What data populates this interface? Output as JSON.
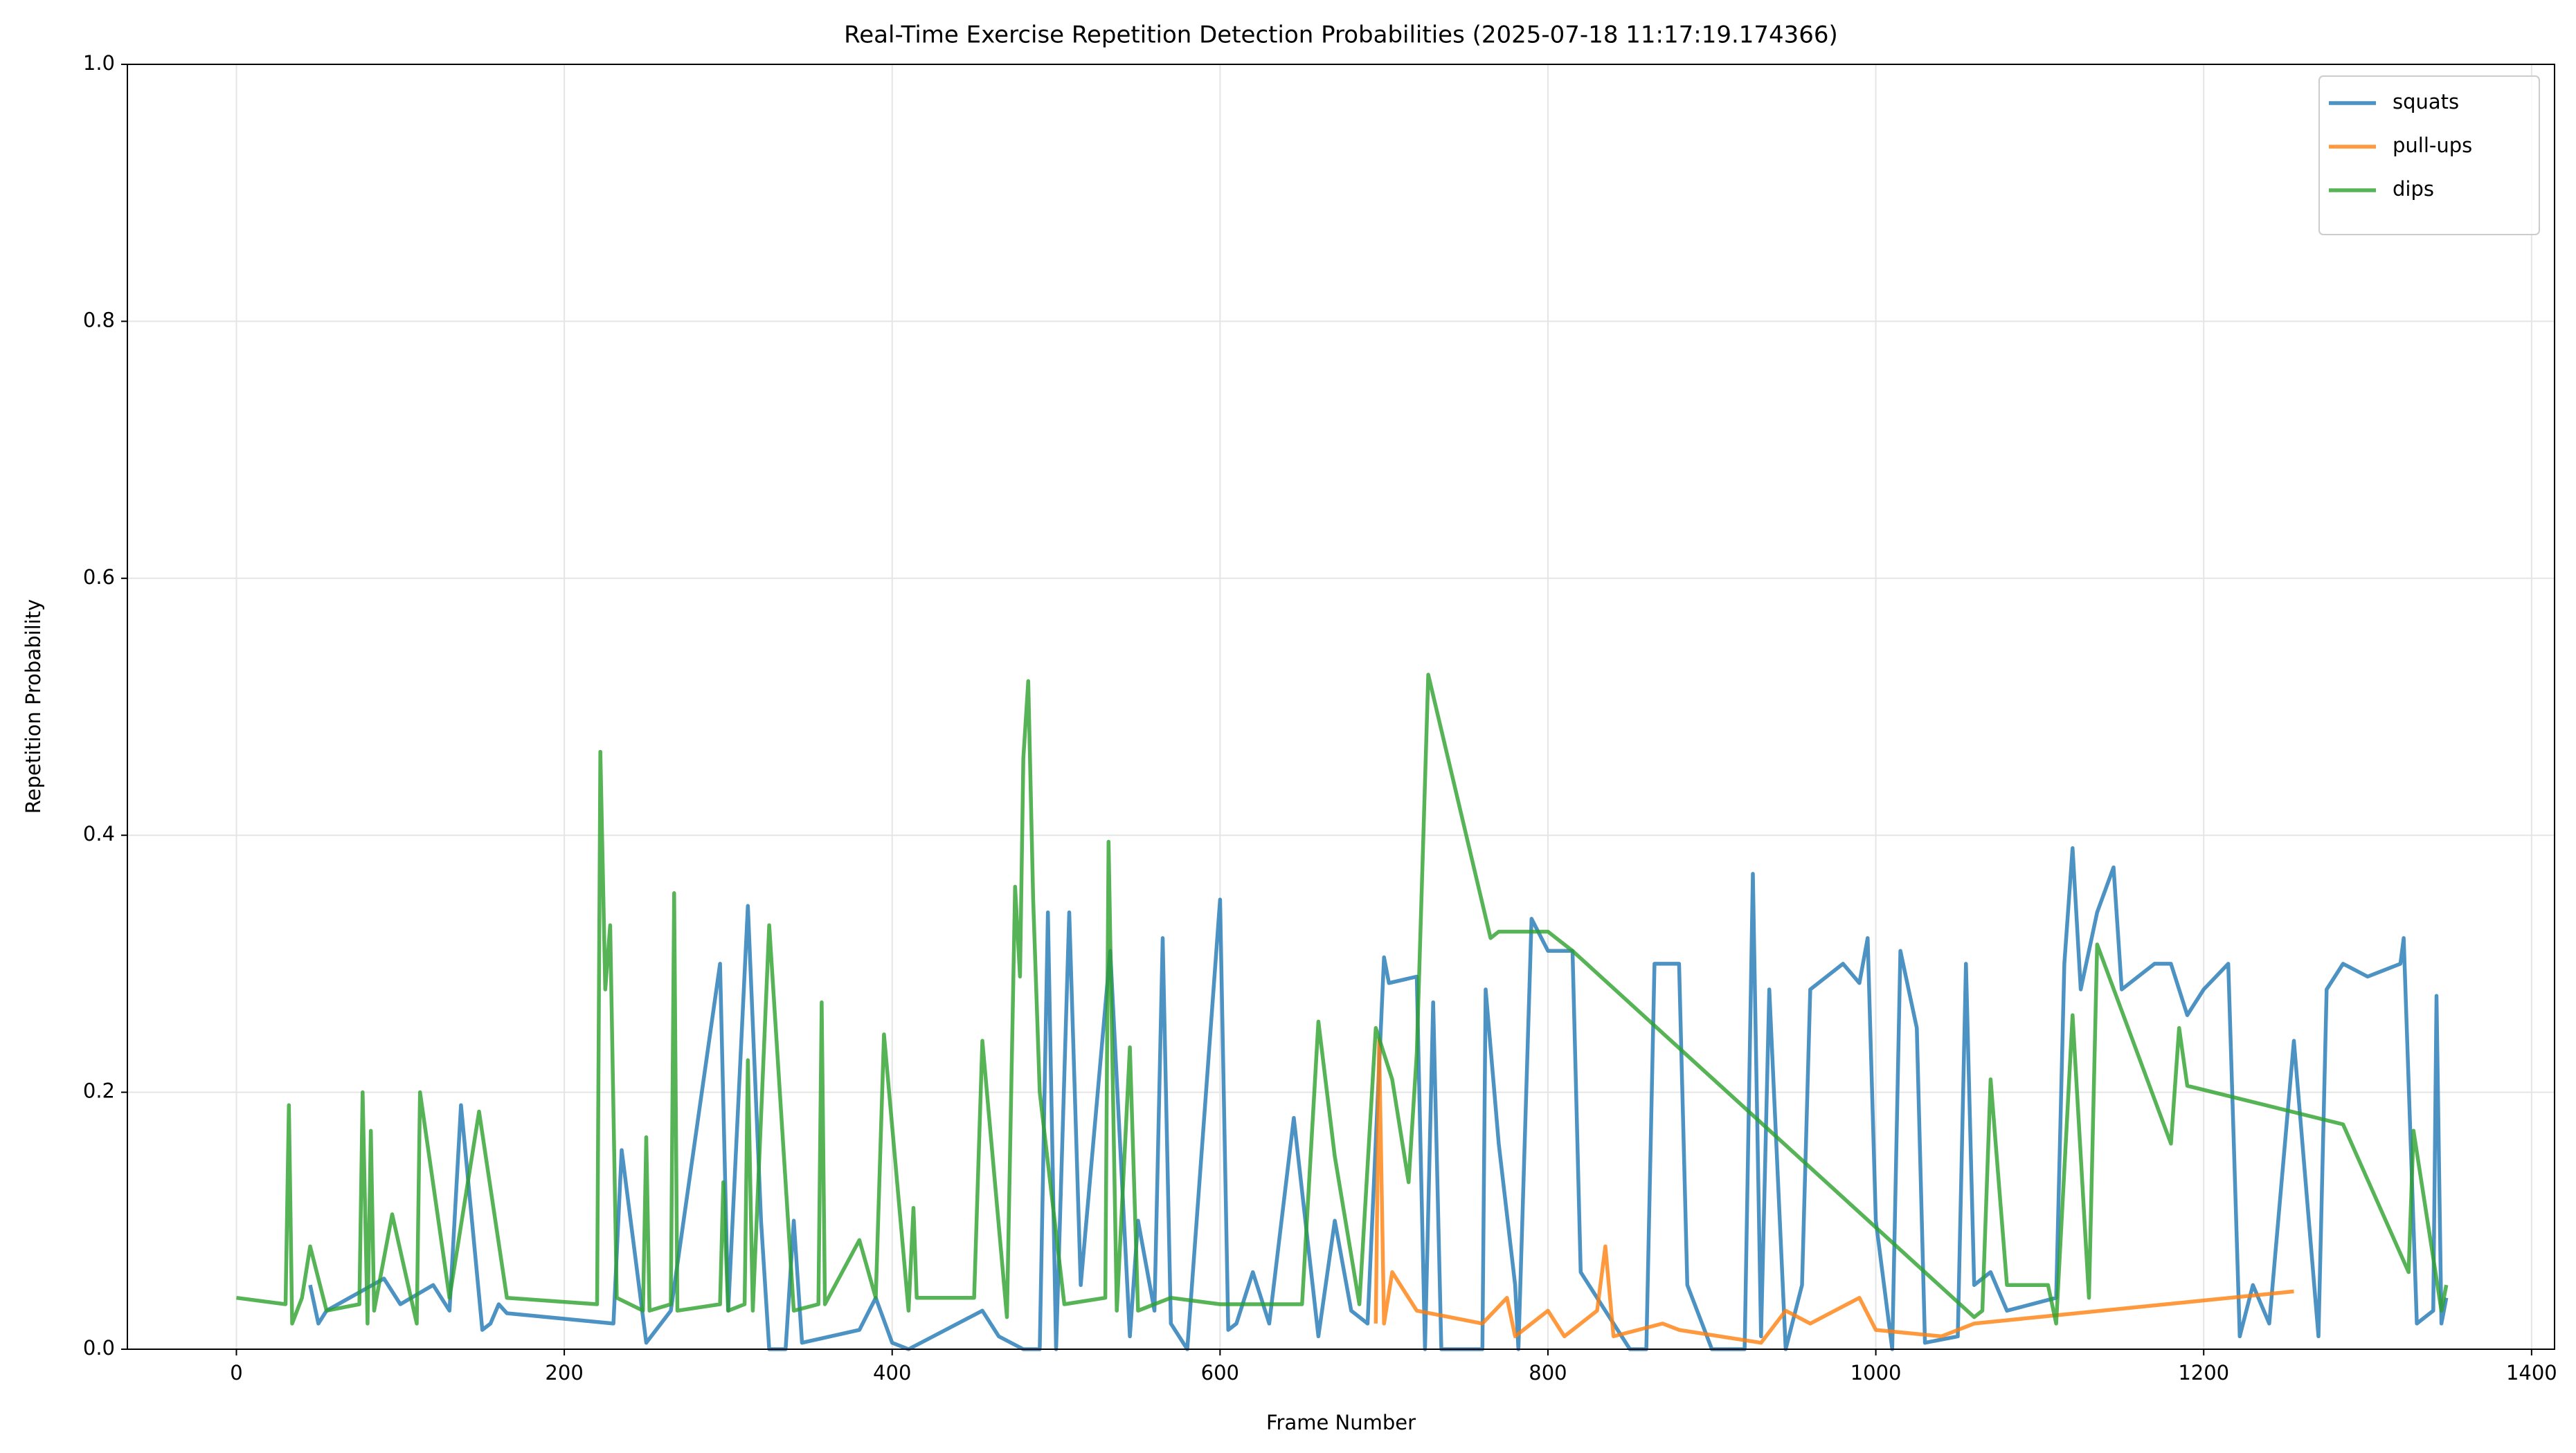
{
  "chart_data": {
    "type": "line",
    "title": "Real-Time Exercise Repetition Detection Probabilities (2025-07-18 11:17:19.174366)",
    "x_label": "Frame Number",
    "y_label": "Repetition Probability",
    "xlim": [
      -66.5,
      1414
    ],
    "ylim": [
      0,
      1
    ],
    "xticks": [
      0,
      200,
      400,
      600,
      800,
      1000,
      1200,
      1400
    ],
    "yticks": [
      {
        "value": 0,
        "label": "0.0"
      },
      0.2,
      0.4,
      0.6,
      0.8,
      {
        "value": 1,
        "label": "1.0"
      }
    ],
    "grid": true,
    "legend": "upper right",
    "series": [
      {
        "name": "squats",
        "color": "#1f77b4",
        "x": [
          45,
          50,
          55,
          90,
          100,
          120,
          130,
          137,
          150,
          155,
          160,
          165,
          230,
          235,
          250,
          265,
          295,
          300,
          312,
          320,
          325,
          335,
          340,
          345,
          380,
          390,
          400,
          410,
          455,
          465,
          480,
          490,
          495,
          500,
          508,
          515,
          533,
          545,
          550,
          560,
          565,
          570,
          580,
          600,
          605,
          610,
          620,
          630,
          645,
          660,
          670,
          680,
          690,
          700,
          703,
          720,
          725,
          730,
          735,
          760,
          762,
          770,
          780,
          782,
          790,
          800,
          815,
          820,
          840,
          850,
          860,
          865,
          880,
          885,
          900,
          920,
          925,
          930,
          935,
          945,
          955,
          960,
          980,
          990,
          995,
          1000,
          1010,
          1015,
          1025,
          1030,
          1050,
          1055,
          1060,
          1070,
          1080,
          1110,
          1115,
          1120,
          1125,
          1135,
          1145,
          1150,
          1170,
          1180,
          1190,
          1200,
          1215,
          1222,
          1230,
          1240,
          1255,
          1270,
          1275,
          1285,
          1300,
          1320,
          1322,
          1330,
          1340,
          1342,
          1345,
          1348
        ],
        "values": [
          0.05,
          0.02,
          0.03,
          0.055,
          0.035,
          0.05,
          0.03,
          0.19,
          0.015,
          0.02,
          0.035,
          0.028,
          0.02,
          0.155,
          0.005,
          0.03,
          0.3,
          0.03,
          0.345,
          0.1,
          0.0,
          0.0,
          0.1,
          0.005,
          0.015,
          0.04,
          0.005,
          0.0,
          0.03,
          0.01,
          0.0,
          0.0,
          0.34,
          0.0,
          0.34,
          0.05,
          0.31,
          0.01,
          0.1,
          0.03,
          0.32,
          0.02,
          0.0,
          0.35,
          0.015,
          0.02,
          0.06,
          0.02,
          0.18,
          0.01,
          0.1,
          0.03,
          0.02,
          0.305,
          0.285,
          0.29,
          0.0,
          0.27,
          0.0,
          0.0,
          0.28,
          0.16,
          0.05,
          0.0,
          0.335,
          0.31,
          0.31,
          0.06,
          0.02,
          0.0,
          0.0,
          0.3,
          0.3,
          0.05,
          0.0,
          0.0,
          0.37,
          0.01,
          0.28,
          0.0,
          0.05,
          0.28,
          0.3,
          0.285,
          0.32,
          0.1,
          0.0,
          0.31,
          0.25,
          0.005,
          0.01,
          0.3,
          0.05,
          0.06,
          0.03,
          0.04,
          0.3,
          0.39,
          0.28,
          0.34,
          0.375,
          0.28,
          0.3,
          0.3,
          0.26,
          0.28,
          0.3,
          0.01,
          0.05,
          0.02,
          0.24,
          0.01,
          0.28,
          0.3,
          0.29,
          0.3,
          0.32,
          0.02,
          0.03,
          0.275,
          0.02,
          0.04
        ]
      },
      {
        "name": "pull-ups",
        "color": "#ff7f0e",
        "x": [
          695,
          697,
          700,
          705,
          720,
          760,
          775,
          780,
          800,
          810,
          830,
          835,
          840,
          870,
          880,
          930,
          945,
          960,
          990,
          1000,
          1040,
          1060,
          1255
        ],
        "values": [
          0.02,
          0.24,
          0.02,
          0.06,
          0.03,
          0.02,
          0.04,
          0.01,
          0.03,
          0.01,
          0.03,
          0.08,
          0.01,
          0.02,
          0.015,
          0.005,
          0.03,
          0.02,
          0.04,
          0.015,
          0.01,
          0.02,
          0.045
        ]
      },
      {
        "name": "dips",
        "color": "#2ca02c",
        "x": [
          0,
          30,
          32,
          34,
          40,
          45,
          55,
          75,
          77,
          80,
          82,
          84,
          95,
          110,
          112,
          130,
          148,
          165,
          220,
          222,
          225,
          228,
          232,
          248,
          250,
          252,
          265,
          267,
          269,
          295,
          297,
          300,
          310,
          312,
          315,
          325,
          340,
          355,
          357,
          359,
          380,
          390,
          395,
          410,
          413,
          415,
          450,
          455,
          470,
          475,
          478,
          480,
          483,
          486,
          490,
          505,
          530,
          532,
          537,
          545,
          550,
          570,
          600,
          650,
          660,
          670,
          685,
          695,
          705,
          715,
          720,
          727,
          765,
          770,
          800,
          815,
          1060,
          1065,
          1070,
          1080,
          1105,
          1110,
          1120,
          1130,
          1135,
          1180,
          1185,
          1190,
          1285,
          1325,
          1328,
          1345,
          1348
        ],
        "values": [
          0.04,
          0.035,
          0.19,
          0.02,
          0.04,
          0.08,
          0.03,
          0.035,
          0.2,
          0.02,
          0.17,
          0.03,
          0.105,
          0.02,
          0.2,
          0.04,
          0.185,
          0.04,
          0.035,
          0.465,
          0.28,
          0.33,
          0.04,
          0.03,
          0.165,
          0.03,
          0.035,
          0.355,
          0.03,
          0.035,
          0.13,
          0.03,
          0.035,
          0.225,
          0.03,
          0.33,
          0.03,
          0.035,
          0.27,
          0.035,
          0.085,
          0.04,
          0.245,
          0.03,
          0.11,
          0.04,
          0.04,
          0.24,
          0.025,
          0.36,
          0.29,
          0.46,
          0.52,
          0.35,
          0.2,
          0.035,
          0.04,
          0.395,
          0.03,
          0.235,
          0.03,
          0.04,
          0.035,
          0.035,
          0.255,
          0.15,
          0.035,
          0.25,
          0.21,
          0.13,
          0.23,
          0.525,
          0.32,
          0.325,
          0.325,
          0.31,
          0.025,
          0.03,
          0.21,
          0.05,
          0.05,
          0.02,
          0.26,
          0.04,
          0.315,
          0.16,
          0.25,
          0.205,
          0.175,
          0.06,
          0.17,
          0.03,
          0.05
        ]
      }
    ]
  }
}
